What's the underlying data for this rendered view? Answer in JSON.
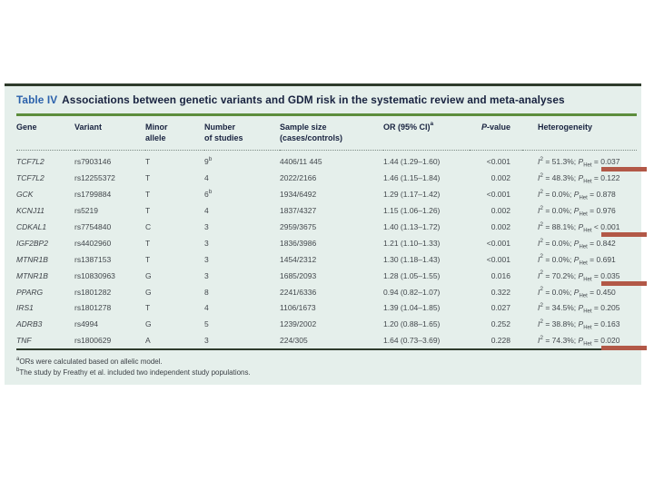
{
  "figure": {
    "label": "Table IV",
    "title": "Associations between genetic variants and GDM risk in the systematic review and meta-analyses"
  },
  "columns": [
    {
      "lines": [
        "Gene"
      ]
    },
    {
      "lines": [
        "Variant"
      ]
    },
    {
      "lines": [
        "Minor",
        "allele"
      ]
    },
    {
      "lines": [
        "Number",
        "of studies"
      ]
    },
    {
      "lines": [
        "Sample size",
        "(cases/controls)"
      ]
    },
    {
      "lines": [
        "OR (95% CI)"
      ],
      "sup": "a"
    },
    {
      "lines": [
        "P-value"
      ],
      "italicFirst": true
    },
    {
      "lines": [
        "Heterogeneity"
      ]
    }
  ],
  "symbols": {
    "i_label": "I",
    "i_sup": "2",
    "eq": " = ",
    "sep": "; ",
    "p_label": "P",
    "p_sub": "Het"
  },
  "rows": [
    {
      "gene": "TCF7L2",
      "variant": "rs7903146",
      "allele": "T",
      "studies": "9",
      "studies_sup": "b",
      "sample": "4406/11 445",
      "or": "1.44 (1.29–1.60)",
      "p": "<0.001",
      "het": {
        "i2": "51.3%",
        "rel": "=",
        "p": "0.037"
      },
      "marked": true
    },
    {
      "gene": "TCF7L2",
      "variant": "rs12255372",
      "allele": "T",
      "studies": "4",
      "studies_sup": "",
      "sample": "2022/2166",
      "or": "1.46 (1.15–1.84)",
      "p": "0.002",
      "het": {
        "i2": "48.3%",
        "rel": "=",
        "p": "0.122"
      },
      "marked": false
    },
    {
      "gene": "GCK",
      "variant": "rs1799884",
      "allele": "T",
      "studies": "6",
      "studies_sup": "b",
      "sample": "1934/6492",
      "or": "1.29 (1.17–1.42)",
      "p": "<0.001",
      "het": {
        "i2": "0.0%",
        "rel": "=",
        "p": "0.878"
      },
      "marked": false
    },
    {
      "gene": "KCNJ11",
      "variant": "rs5219",
      "allele": "T",
      "studies": "4",
      "studies_sup": "",
      "sample": "1837/4327",
      "or": "1.15 (1.06–1.26)",
      "p": "0.002",
      "het": {
        "i2": "0.0%",
        "rel": "=",
        "p": "0.976"
      },
      "marked": false
    },
    {
      "gene": "CDKAL1",
      "variant": "rs7754840",
      "allele": "C",
      "studies": "3",
      "studies_sup": "",
      "sample": "2959/3675",
      "or": "1.40 (1.13–1.72)",
      "p": "0.002",
      "het": {
        "i2": "88.1%",
        "rel": "<",
        "p": "0.001"
      },
      "marked": true
    },
    {
      "gene": "IGF2BP2",
      "variant": "rs4402960",
      "allele": "T",
      "studies": "3",
      "studies_sup": "",
      "sample": "1836/3986",
      "or": "1.21 (1.10–1.33)",
      "p": "<0.001",
      "het": {
        "i2": "0.0%",
        "rel": "=",
        "p": "0.842"
      },
      "marked": false
    },
    {
      "gene": "MTNR1B",
      "variant": "rs1387153",
      "allele": "T",
      "studies": "3",
      "studies_sup": "",
      "sample": "1454/2312",
      "or": "1.30 (1.18–1.43)",
      "p": "<0.001",
      "het": {
        "i2": "0.0%",
        "rel": "=",
        "p": "0.691"
      },
      "marked": false
    },
    {
      "gene": "MTNR1B",
      "variant": "rs10830963",
      "allele": "G",
      "studies": "3",
      "studies_sup": "",
      "sample": "1685/2093",
      "or": "1.28 (1.05–1.55)",
      "p": "0.016",
      "het": {
        "i2": "70.2%",
        "rel": "=",
        "p": "0.035"
      },
      "marked": true
    },
    {
      "gene": "PPARG",
      "variant": "rs1801282",
      "allele": "G",
      "studies": "8",
      "studies_sup": "",
      "sample": "2241/6336",
      "or": "0.94 (0.82–1.07)",
      "p": "0.322",
      "het": {
        "i2": "0.0%",
        "rel": "=",
        "p": "0.450"
      },
      "marked": false
    },
    {
      "gene": "IRS1",
      "variant": "rs1801278",
      "allele": "T",
      "studies": "4",
      "studies_sup": "",
      "sample": "1106/1673",
      "or": "1.39 (1.04–1.85)",
      "p": "0.027",
      "het": {
        "i2": "34.5%",
        "rel": "=",
        "p": "0.205"
      },
      "marked": false
    },
    {
      "gene": "ADRB3",
      "variant": "rs4994",
      "allele": "G",
      "studies": "5",
      "studies_sup": "",
      "sample": "1239/2002",
      "or": "1.20 (0.88–1.65)",
      "p": "0.252",
      "het": {
        "i2": "38.8%",
        "rel": "=",
        "p": "0.163"
      },
      "marked": false
    },
    {
      "gene": "TNF",
      "variant": "rs1800629",
      "allele": "A",
      "studies": "3",
      "studies_sup": "",
      "sample": "224/305",
      "or": "1.64 (0.73–3.69)",
      "p": "0.228",
      "het": {
        "i2": "74.3%",
        "rel": "=",
        "p": "0.020"
      },
      "marked": true
    }
  ],
  "footnotes": [
    {
      "sup": "a",
      "text": "ORs were calculated based on allelic model."
    },
    {
      "sup": "b",
      "text": "The study by Freathy et al. included two independent study populations."
    }
  ],
  "colors": {
    "pale": "#e5efeb",
    "dark_rule": "#2e3b2c",
    "green": "#5c8d3c",
    "blue": "#2b61ab",
    "ink": "#18223f",
    "body": "#43484d",
    "bar": "#b25847",
    "fnote": "#3c4146"
  }
}
